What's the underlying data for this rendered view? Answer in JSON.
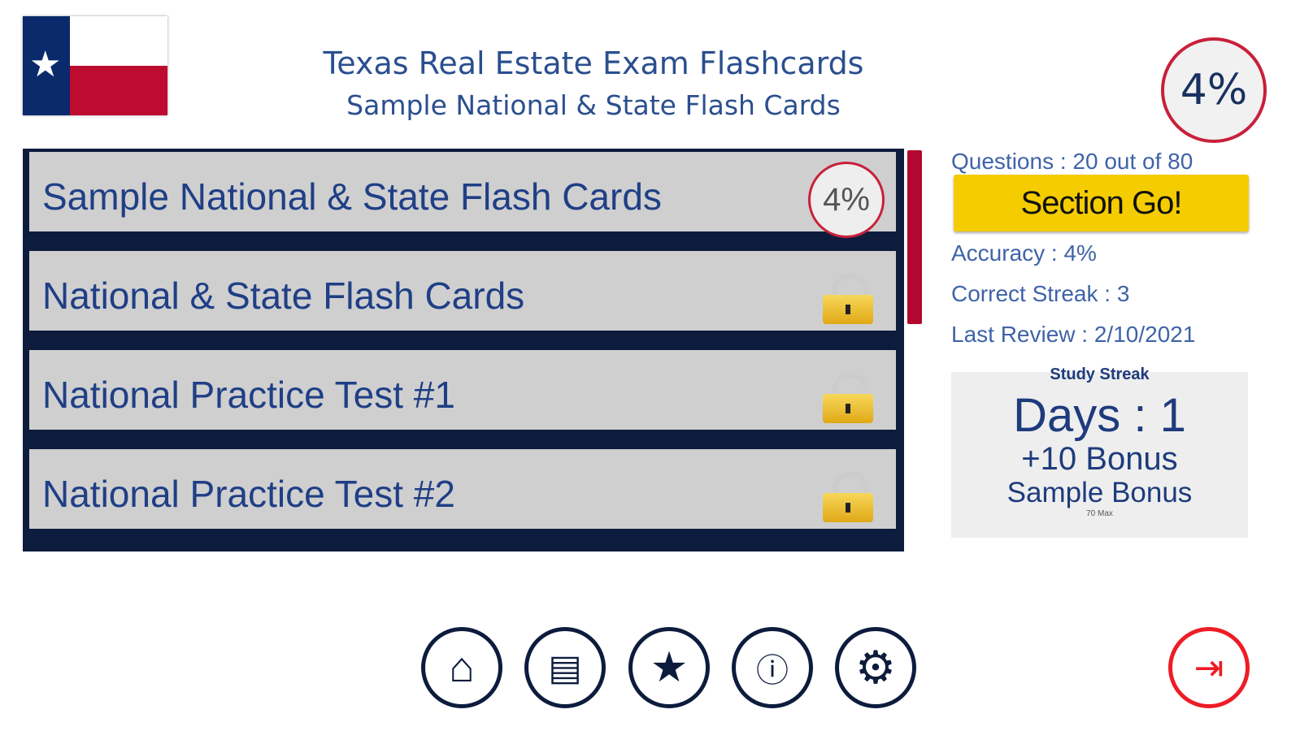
{
  "header": {
    "title": "Texas Real Estate Exam Flashcards",
    "subtitle": "Sample National & State Flash Cards",
    "overall_progress": "4%"
  },
  "sections": [
    {
      "label": "Sample National & State Flash Cards",
      "progress": "4%",
      "locked": false
    },
    {
      "label": "National & State Flash Cards",
      "locked": true
    },
    {
      "label": "National Practice Test #1",
      "locked": true
    },
    {
      "label": "National Practice Test #2",
      "locked": true
    }
  ],
  "stats": {
    "questions": "Questions : 20 out of 80",
    "go_label": "Section Go!",
    "accuracy": "Accuracy : 4%",
    "correct_streak": "Correct Streak : 3",
    "last_review": "Last Review : 2/10/2021"
  },
  "streak": {
    "heading": "Study Streak",
    "days": "Days : 1",
    "bonus": "+10 Bonus",
    "sample_bonus": "Sample Bonus",
    "max": "70 Max"
  },
  "nav": {
    "icons": [
      "home-icon",
      "document-icon",
      "star-icon",
      "info-icon",
      "settings-icon",
      "exit-icon"
    ]
  },
  "colors": {
    "navy": "#0d1c3d",
    "accent_red": "#c8203a",
    "go_yellow": "#f5cc00",
    "text_blue": "#1f3f86"
  }
}
